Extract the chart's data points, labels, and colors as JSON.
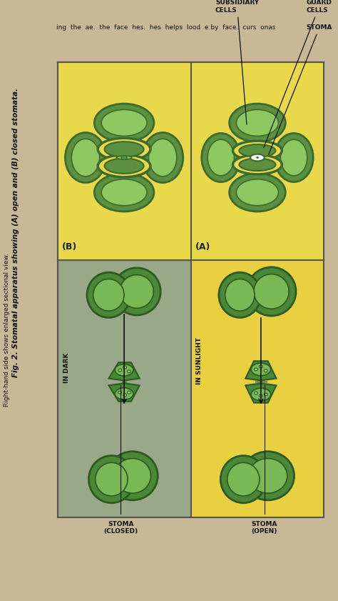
{
  "page_bg": "#c8b898",
  "panel_bg": "#f0ede0",
  "top_panel": {
    "bg": "#f8f5e8",
    "yellow_bg": "#e8d84a",
    "cell_green_dark": "#3d6b2e",
    "cell_green_mid": "#5a9040",
    "cell_green_light": "#8ec860",
    "cell_green_pale": "#a8d870",
    "guard_yellow": "#e8d84a",
    "label_A": "(A)",
    "label_B": "(B)",
    "stoma_label": "STOMA",
    "guard_label": "GUARD\nCELLS",
    "subsidiary_label": "SUBSIDIARY\nCELLS"
  },
  "bottom_panel": {
    "sunlight_bg": "#e8d040",
    "dark_bg": "#98a888",
    "cell_green_dark": "#2e5a22",
    "cell_green_mid": "#4a8838",
    "cell_green_light": "#78b855",
    "cell_green_pale": "#a0cc78",
    "guard_yellow_border": "#c8b030",
    "guard_inner": "#7ab848",
    "nucleus_color": "#3a6828",
    "label_sunlight": "IN SUNLIGHT",
    "label_dark": "IN DARK",
    "label_open": "STOMA\n(OPEN)",
    "label_closed": "STOMA\n(CLOSED)"
  },
  "text_left_caption": "Fig. 2. Stomatal apparatus showing (A) open and (B) closed stomata.",
  "text_left_sub": "Right-hand side shows enlarged sectional view.",
  "top_strip_words": [
    "ing",
    "the",
    "ae.",
    "the",
    "face",
    "hes.",
    "hes",
    "helps",
    "lood",
    "e by",
    "face.",
    "curs",
    "onas"
  ]
}
